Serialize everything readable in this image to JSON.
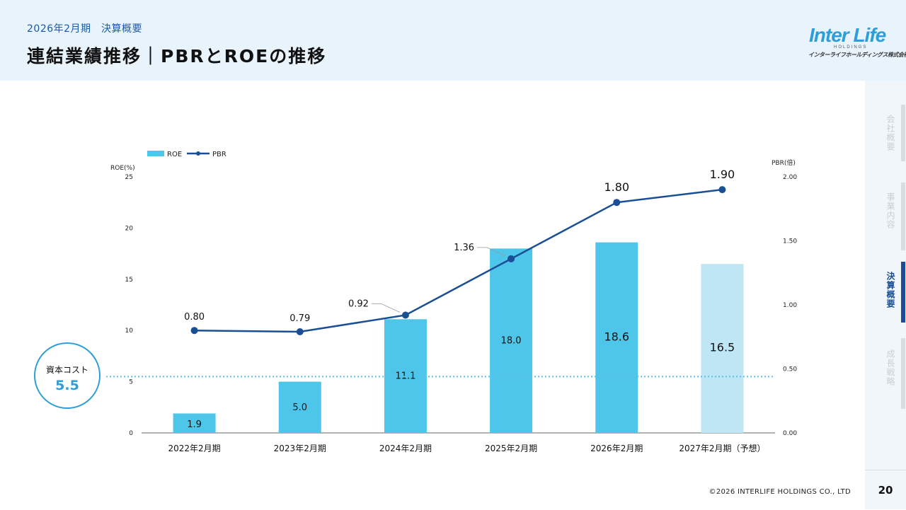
{
  "header": {
    "subtitle": "2026年2月期　決算概要",
    "title": "連結業績推移｜PBRとROEの推移"
  },
  "logo": {
    "main": "Inter Life",
    "sub": "HOLDINGS",
    "kana": "インターライフホールディングス株式会社"
  },
  "sidebar": {
    "items": [
      {
        "label": "会社概要",
        "active": false
      },
      {
        "label": "事業内容",
        "active": false
      },
      {
        "label": "決算概要",
        "active": true
      },
      {
        "label": "成長戦略",
        "active": false
      }
    ]
  },
  "page_number": "20",
  "copyright": "©2026 INTERLIFE HOLDINGS CO., LTD",
  "cost_of_capital": {
    "label": "資本コスト",
    "value": "5.5",
    "roe_value": 5.5
  },
  "colors": {
    "roe_bar": "#4ec6ea",
    "roe_bar_forecast": "#bfe6f5",
    "pbr_line": "#1a4f96",
    "accent": "#2d9ed8",
    "header_bg": "#e8f3fb"
  },
  "chart_data": {
    "type": "bar",
    "categories": [
      "2022年2月期",
      "2023年2月期",
      "2024年2月期",
      "2025年2月期",
      "2026年2月期",
      "2027年2月期（予想）"
    ],
    "series": [
      {
        "name": "ROE",
        "type": "bar",
        "axis": "left",
        "values": [
          1.9,
          5.0,
          11.1,
          18.0,
          18.6,
          16.5
        ],
        "labels": [
          "1.9",
          "5.0",
          "11.1",
          "18.0",
          "18.6",
          "16.5"
        ]
      },
      {
        "name": "PBR",
        "type": "line",
        "axis": "right",
        "values": [
          0.8,
          0.79,
          0.92,
          1.36,
          1.8,
          1.9
        ],
        "labels": [
          "0.80",
          "0.79",
          "0.92",
          "1.36",
          "1.80",
          "1.90"
        ]
      }
    ],
    "left_axis": {
      "label": "ROE(%)",
      "ticks": [
        "0",
        "5",
        "10",
        "15",
        "20",
        "25"
      ],
      "range": [
        0,
        25
      ]
    },
    "right_axis": {
      "label": "PBR(倍)",
      "ticks": [
        "0.00",
        "0.50",
        "1.00",
        "1.50",
        "2.00"
      ],
      "range": [
        0,
        2
      ]
    },
    "legend": {
      "position": "top-left",
      "entries": [
        "ROE",
        "PBR"
      ]
    },
    "forecast_category": "2027年2月期（予想）"
  }
}
